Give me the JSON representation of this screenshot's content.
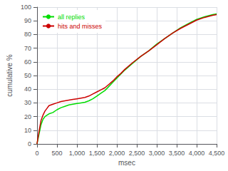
{
  "chart_data": {
    "type": "line",
    "xlabel": "msec",
    "ylabel": "cumulative %",
    "xlim": [
      0,
      4500
    ],
    "ylim": [
      0,
      100
    ],
    "xticks": [
      0,
      500,
      1000,
      1500,
      2000,
      2500,
      3000,
      3500,
      4000,
      4500
    ],
    "yticks": [
      0,
      10,
      20,
      30,
      40,
      50,
      60,
      70,
      80,
      90,
      100
    ],
    "grid": true,
    "legend": "upper left",
    "x": [
      0,
      50,
      100,
      150,
      200,
      250,
      300,
      400,
      500,
      600,
      700,
      800,
      900,
      1000,
      1100,
      1200,
      1300,
      1400,
      1500,
      1600,
      1700,
      1800,
      1900,
      2000,
      2100,
      2200,
      2400,
      2600,
      2800,
      3000,
      3200,
      3400,
      3600,
      3800,
      4000,
      4200,
      4400,
      4500
    ],
    "series": [
      {
        "name": "all replies",
        "color": "#00dd00",
        "values": [
          0,
          7,
          14,
          18,
          20,
          21,
          22,
          23,
          25,
          26.5,
          27.5,
          28.5,
          29,
          29.5,
          30,
          30.5,
          31.5,
          33,
          35,
          37,
          39,
          42,
          45,
          48,
          51,
          54,
          59,
          64,
          68,
          73,
          77,
          81,
          85,
          88,
          91,
          93,
          94.5,
          95
        ]
      },
      {
        "name": "hits and misses",
        "color": "#cc0000",
        "values": [
          0,
          9,
          17,
          21,
          24,
          26,
          28,
          29,
          30,
          31,
          31.5,
          32,
          32.5,
          33,
          33.5,
          34,
          35,
          36.5,
          38,
          39.5,
          41,
          43.5,
          46,
          49,
          51.5,
          54.5,
          59.5,
          64,
          68,
          72.5,
          77,
          81,
          84.5,
          87.5,
          90.5,
          92.5,
          94,
          94.5
        ]
      }
    ]
  }
}
